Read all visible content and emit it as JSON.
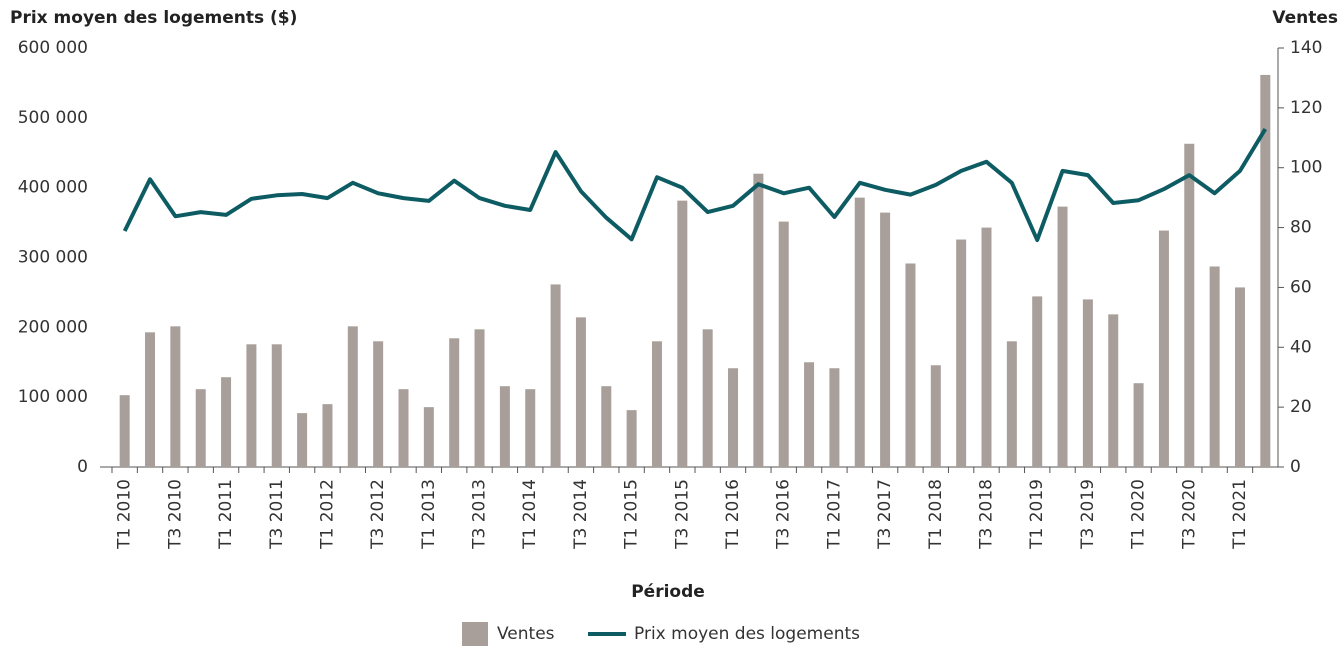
{
  "chart_data": {
    "type": "bar+line",
    "y_label": "Prix moyen des logements ($)",
    "y2_label": "Ventes",
    "x_label": "Période",
    "categories": [
      "T1 2010",
      null,
      "T3 2010",
      null,
      "T1 2011",
      null,
      "T3 2011",
      null,
      "T1 2012",
      null,
      "T3 2012",
      null,
      "T1 2013",
      null,
      "T3 2013",
      null,
      "T1 2014",
      null,
      "T3 2014",
      null,
      "T1 2015",
      null,
      "T3 2015",
      null,
      "T1 2016",
      null,
      "T3 2016",
      null,
      "T1 2017",
      null,
      "T3 2017",
      null,
      "T1 2018",
      null,
      "T3 2018",
      null,
      "T1 2019",
      null,
      "T3 2019",
      null,
      "T1 2020",
      null,
      "T3 2020",
      null,
      "T1 2021",
      null
    ],
    "series": [
      {
        "name": "Ventes",
        "type": "bar",
        "axis": "y2",
        "color": "#a89f9a",
        "values": [
          24,
          45,
          47,
          26,
          30,
          41,
          41,
          18,
          21,
          47,
          42,
          26,
          20,
          43,
          46,
          27,
          26,
          61,
          50,
          27,
          19,
          42,
          89,
          46,
          33,
          98,
          82,
          35,
          33,
          90,
          85,
          68,
          34,
          76,
          80,
          42,
          57,
          87,
          56,
          51,
          28,
          79,
          108,
          67,
          60,
          131
        ]
      },
      {
        "name": "Prix moyen des logements",
        "type": "line",
        "axis": "y",
        "color": "#0e5c63",
        "values": [
          338000,
          412000,
          359000,
          365000,
          361000,
          384000,
          389000,
          391000,
          385000,
          407000,
          392000,
          385000,
          381000,
          410000,
          385000,
          374000,
          368000,
          451000,
          395000,
          357000,
          326000,
          415000,
          400000,
          365000,
          374000,
          405000,
          392000,
          400000,
          358000,
          407000,
          397000,
          390000,
          404000,
          424000,
          437000,
          407000,
          325000,
          424000,
          418000,
          378000,
          382000,
          398000,
          418000,
          392000,
          424000,
          484000
        ]
      }
    ],
    "ylim": [
      0,
      600000
    ],
    "yticks": [
      0,
      {
        "value": 100000,
        "label": "100 000"
      },
      {
        "value": 200000,
        "label": "200 000"
      },
      {
        "value": 300000,
        "label": "300 000"
      },
      {
        "value": 400000,
        "label": "400 000"
      },
      {
        "value": 500000,
        "label": "500 000"
      },
      {
        "value": 600000,
        "label": "600 000"
      }
    ],
    "y2lim": [
      0,
      140
    ],
    "y2ticks": [
      0,
      20,
      40,
      60,
      80,
      100,
      120,
      140
    ],
    "grid": false,
    "legend": "bottom"
  }
}
